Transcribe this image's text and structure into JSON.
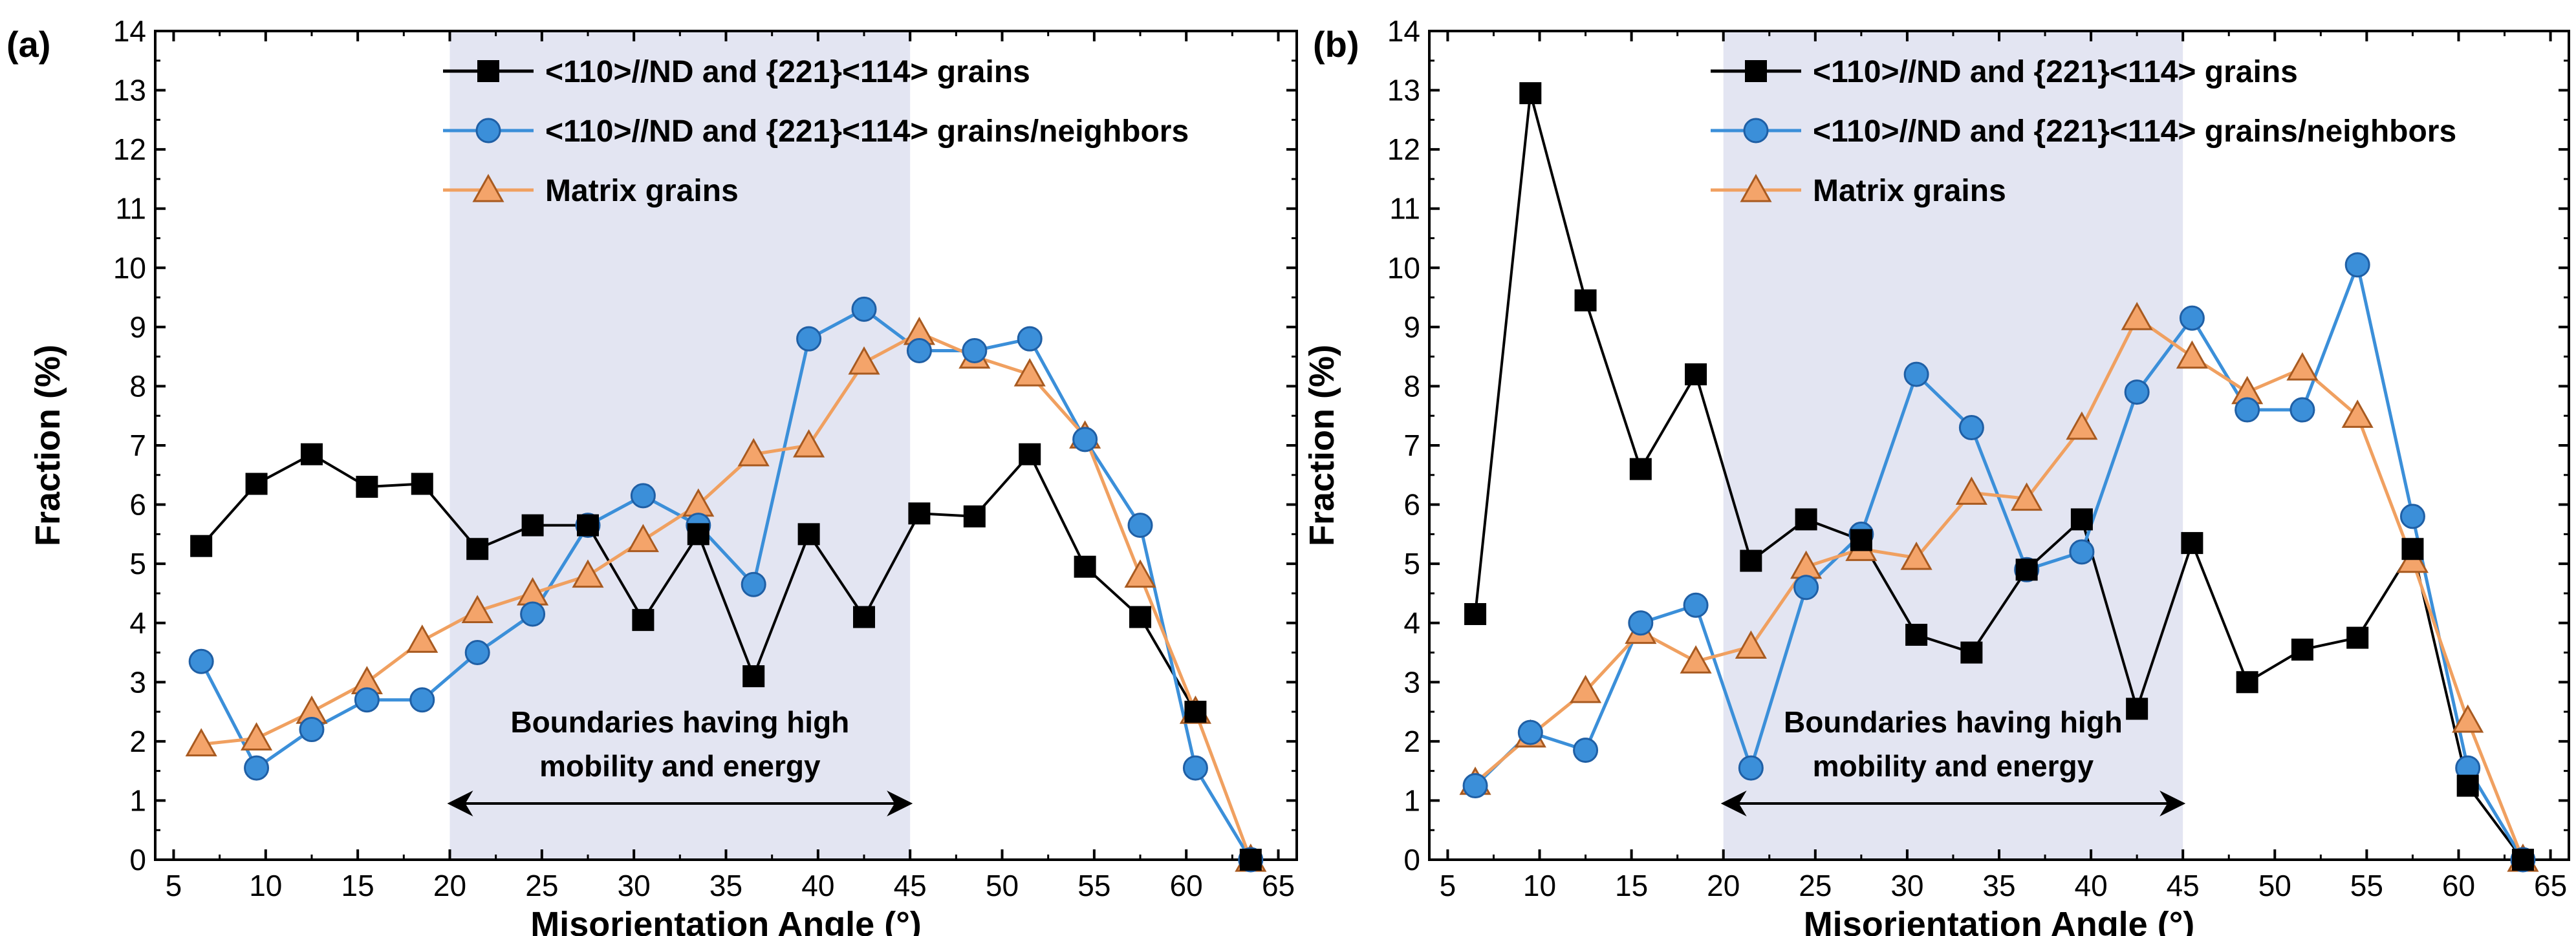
{
  "figure": {
    "panels": [
      "(a)",
      "(b)"
    ]
  },
  "chart_data": [
    {
      "type": "line",
      "panel_label": "(a)",
      "xlabel": "Misorientation Angle (°)",
      "ylabel": "Fraction (%)",
      "xlim": [
        4,
        66
      ],
      "ylim": [
        0,
        14
      ],
      "xticks": [
        5,
        10,
        15,
        20,
        25,
        30,
        35,
        40,
        45,
        50,
        55,
        60,
        65
      ],
      "yticks": [
        0,
        1,
        2,
        3,
        4,
        5,
        6,
        7,
        8,
        9,
        10,
        11,
        12,
        13,
        14
      ],
      "x": [
        6.5,
        9.5,
        12.5,
        15.5,
        18.5,
        21.5,
        24.5,
        27.5,
        30.5,
        33.5,
        36.5,
        39.5,
        42.5,
        45.5,
        48.5,
        51.5,
        54.5,
        57.5,
        60.5,
        63.5
      ],
      "series": [
        {
          "name": "<110>//ND and {221}<114> grains",
          "color": "#000000",
          "marker": "square",
          "values": [
            5.3,
            6.35,
            6.85,
            6.3,
            6.35,
            5.25,
            5.65,
            5.65,
            4.05,
            5.5,
            3.1,
            5.5,
            4.1,
            5.85,
            5.8,
            6.85,
            4.95,
            4.1,
            2.5,
            0.0
          ]
        },
        {
          "name": "<110>//ND and {221}<114> grains/neighbors",
          "color": "#3b8fd9",
          "marker": "circle",
          "values": [
            3.35,
            1.55,
            2.2,
            2.7,
            2.7,
            3.5,
            4.15,
            5.65,
            6.15,
            5.65,
            4.65,
            8.8,
            9.3,
            8.6,
            8.6,
            8.8,
            7.1,
            5.65,
            1.55,
            0.0
          ]
        },
        {
          "name": "Matrix grains",
          "color": "#f0a060",
          "marker": "triangle",
          "values": [
            1.95,
            2.05,
            2.5,
            3.0,
            3.7,
            4.2,
            4.5,
            4.8,
            5.4,
            6.0,
            6.85,
            7.0,
            8.4,
            8.9,
            8.5,
            8.2,
            7.15,
            4.8,
            2.5,
            0.0
          ]
        }
      ],
      "highlight": {
        "x_range": [
          20,
          45
        ]
      },
      "annotation": {
        "line1": "Boundaries having high",
        "line2": "mobility and energy",
        "arrow_x_range": [
          20,
          45
        ],
        "arrow_y": 0.95
      }
    },
    {
      "type": "line",
      "panel_label": "(b)",
      "xlabel": "Misorientation Angle (°)",
      "ylabel": "Fraction (%)",
      "xlim": [
        4,
        66
      ],
      "ylim": [
        0,
        14
      ],
      "xticks": [
        5,
        10,
        15,
        20,
        25,
        30,
        35,
        40,
        45,
        50,
        55,
        60,
        65
      ],
      "yticks": [
        0,
        1,
        2,
        3,
        4,
        5,
        6,
        7,
        8,
        9,
        10,
        11,
        12,
        13,
        14
      ],
      "x": [
        6.5,
        9.5,
        12.5,
        15.5,
        18.5,
        21.5,
        24.5,
        27.5,
        30.5,
        33.5,
        36.5,
        39.5,
        42.5,
        45.5,
        48.5,
        51.5,
        54.5,
        57.5,
        60.5,
        63.5
      ],
      "series": [
        {
          "name": "<110>//ND and {221}<114> grains",
          "color": "#000000",
          "marker": "square",
          "values": [
            4.15,
            12.95,
            9.45,
            6.6,
            8.2,
            5.05,
            5.75,
            5.4,
            3.8,
            3.5,
            4.9,
            5.75,
            2.55,
            5.35,
            3.0,
            3.55,
            3.75,
            5.25,
            1.25,
            0.0
          ]
        },
        {
          "name": "<110>//ND and {221}<114> grains/neighbors",
          "color": "#3b8fd9",
          "marker": "circle",
          "values": [
            1.25,
            2.15,
            1.85,
            4.0,
            4.3,
            1.55,
            4.6,
            5.5,
            8.2,
            7.3,
            4.9,
            5.2,
            7.9,
            9.15,
            7.6,
            7.6,
            10.05,
            5.8,
            1.55,
            0.0
          ]
        },
        {
          "name": "Matrix grains",
          "color": "#f0a060",
          "marker": "triangle",
          "values": [
            1.3,
            2.1,
            2.85,
            3.85,
            3.35,
            3.6,
            4.95,
            5.25,
            5.1,
            6.2,
            6.1,
            7.3,
            9.15,
            8.5,
            7.9,
            8.3,
            7.5,
            5.05,
            2.35,
            0.0
          ]
        }
      ],
      "highlight": {
        "x_range": [
          20,
          45
        ]
      },
      "annotation": {
        "line1": "Boundaries having high",
        "line2": "mobility and energy",
        "arrow_x_range": [
          20,
          45
        ],
        "arrow_y": 0.95
      }
    }
  ]
}
